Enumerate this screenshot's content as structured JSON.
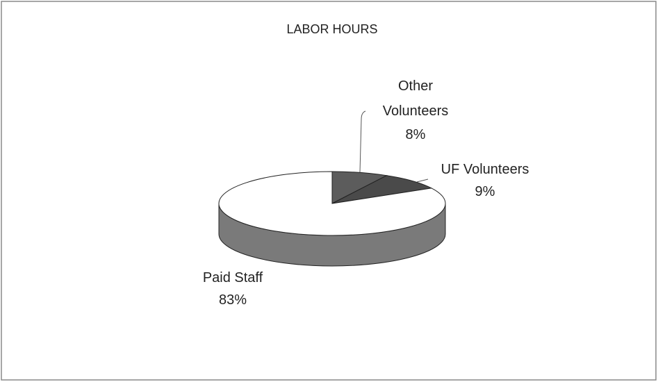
{
  "chart_data": {
    "type": "pie",
    "title": "LABOR HOURS",
    "categories": [
      "Other Volunteers",
      "UF Volunteers",
      "Paid Staff"
    ],
    "values": [
      8,
      9,
      83
    ],
    "value_labels": [
      "8%",
      "9%",
      "83%"
    ],
    "colors": [
      "#5c5c5c",
      "#4a4a4a",
      "#ffffff"
    ]
  }
}
